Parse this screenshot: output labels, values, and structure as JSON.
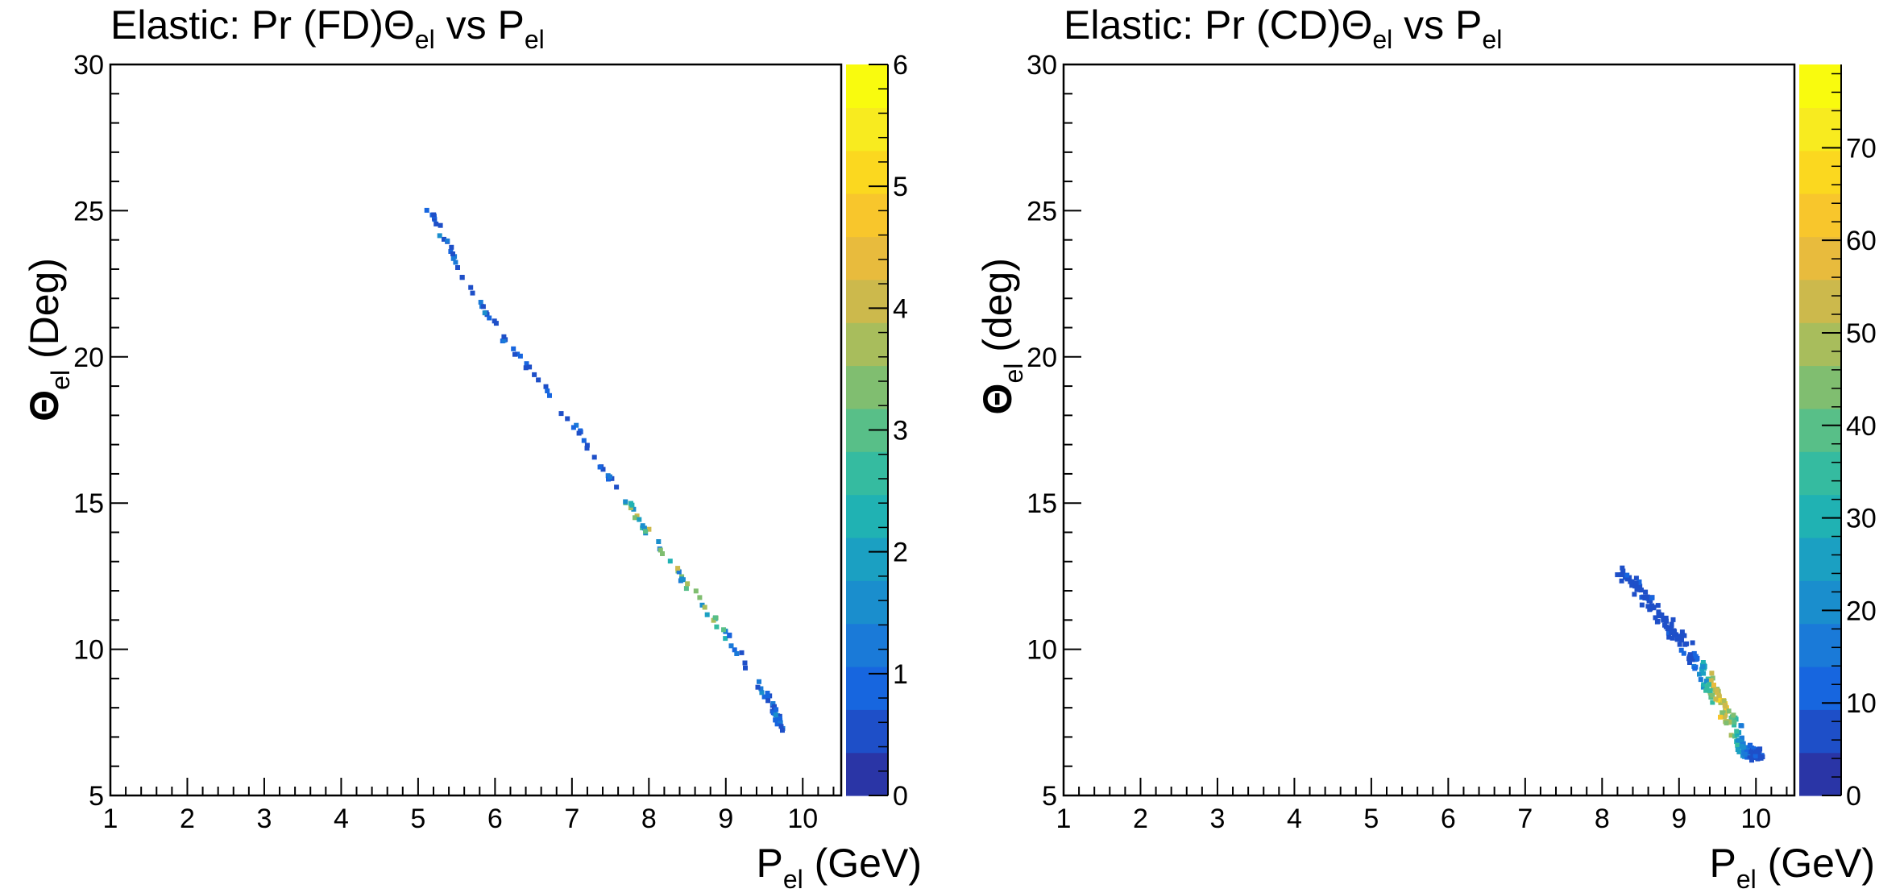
{
  "chart_data": [
    {
      "type": "heatmap",
      "title": {
        "main": "Elastic: Pr (FD)Θ",
        "sub1": "el",
        "mid": " vs P",
        "sub2": "el"
      },
      "xlabel": {
        "main": "P",
        "sub": "el",
        "unit": " (GeV)"
      },
      "ylabel": {
        "main": "Θ",
        "sub": "el",
        "unit": " (Deg)"
      },
      "xlim": [
        1,
        10.5
      ],
      "ylim": [
        5,
        30
      ],
      "x_ticks": [
        "1",
        "2",
        "3",
        "4",
        "5",
        "6",
        "7",
        "8",
        "9",
        "10"
      ],
      "y_ticks": [
        "5",
        "10",
        "15",
        "20",
        "25",
        "30"
      ],
      "colorbar": {
        "range": [
          0,
          6
        ],
        "ticks": [
          "0",
          "1",
          "2",
          "3",
          "4",
          "5",
          "6"
        ]
      },
      "grid": false,
      "band": {
        "points": [
          [
            5.05,
            25.45
          ],
          [
            5.3,
            24.3
          ],
          [
            5.6,
            22.7
          ],
          [
            6.2,
            20.3
          ],
          [
            6.5,
            19.5
          ],
          [
            7.0,
            17.7
          ],
          [
            7.5,
            15.8
          ],
          [
            8.0,
            14.0
          ],
          [
            8.5,
            12.2
          ],
          [
            9.0,
            10.5
          ],
          [
            9.3,
            9.3
          ],
          [
            9.6,
            8.1
          ],
          [
            9.75,
            7.2
          ]
        ],
        "count": 150,
        "max_density": 6
      }
    },
    {
      "type": "heatmap",
      "title": {
        "main": "Elastic: Pr (CD)Θ",
        "sub1": "el",
        "mid": " vs P",
        "sub2": "el"
      },
      "xlabel": {
        "main": "P",
        "sub": "el",
        "unit": " (GeV)"
      },
      "ylabel": {
        "main": "Θ",
        "sub": "el",
        "unit": " (deg)"
      },
      "xlim": [
        1,
        10.5
      ],
      "ylim": [
        5,
        30
      ],
      "x_ticks": [
        "1",
        "2",
        "3",
        "4",
        "5",
        "6",
        "7",
        "8",
        "9",
        "10"
      ],
      "y_ticks": [
        "5",
        "10",
        "15",
        "20",
        "25",
        "30"
      ],
      "colorbar": {
        "range": [
          0,
          79
        ],
        "ticks": [
          "0",
          "10",
          "20",
          "30",
          "40",
          "50",
          "60",
          "70"
        ]
      },
      "grid": false,
      "band": {
        "points": [
          [
            8.2,
            12.8
          ],
          [
            8.5,
            12.0
          ],
          [
            8.8,
            11.0
          ],
          [
            9.1,
            10.0
          ],
          [
            9.4,
            8.8
          ],
          [
            9.6,
            7.8
          ],
          [
            9.85,
            6.6
          ],
          [
            10.0,
            6.4
          ]
        ],
        "count": 260,
        "max_density": 79
      }
    }
  ],
  "palette": [
    "#2a35a6",
    "#1e4fc8",
    "#1766df",
    "#1a7ad8",
    "#1a8ecd",
    "#1ba0c2",
    "#20b2b3",
    "#35bba0",
    "#58bf88",
    "#80be70",
    "#a8bd5c",
    "#ccb94c",
    "#e8bb3d",
    "#f8c62c",
    "#fbd81f",
    "#f8eb1f",
    "#f9fb0e"
  ]
}
